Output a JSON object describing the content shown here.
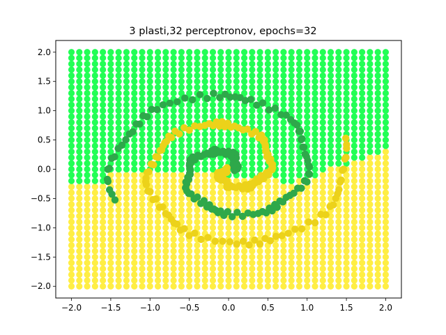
{
  "chart_data": {
    "type": "scatter",
    "title": "3 plasti,32 perceptronov, epochs=32",
    "xlabel": "",
    "ylabel": "",
    "xlim": [
      -2.2,
      2.2
    ],
    "ylim": [
      -2.2,
      2.2
    ],
    "xticks": [
      "−2.0",
      "−1.5",
      "−1.0",
      "−0.5",
      "0.0",
      "0.5",
      "1.0",
      "1.5",
      "2.0"
    ],
    "yticks": [
      "−2.0",
      "−1.5",
      "−1.0",
      "−0.5",
      "0.0",
      "0.5",
      "1.0",
      "1.5",
      "2.0"
    ],
    "xtick_values": [
      -2.0,
      -1.5,
      -1.0,
      -0.5,
      0.0,
      0.5,
      1.0,
      1.5,
      2.0
    ],
    "ytick_values": [
      -2.0,
      -1.5,
      -1.0,
      -0.5,
      0.0,
      0.5,
      1.0,
      1.5,
      2.0
    ],
    "grid": false,
    "background_grid": {
      "x_range": [
        -2.0,
        2.0
      ],
      "y_range": [
        -2.0,
        2.0
      ],
      "step": 0.1,
      "class_a_color": "#22ff55",
      "class_b_color": "#ffee44",
      "boundary_points": [
        {
          "x": -2.0,
          "y": -0.24
        },
        {
          "x": -1.6,
          "y": -0.2
        },
        {
          "x": -1.5,
          "y": -0.05
        },
        {
          "x": -1.2,
          "y": -0.05
        },
        {
          "x": -1.0,
          "y": -0.03
        },
        {
          "x": -0.5,
          "y": -0.05
        },
        {
          "x": 0.0,
          "y": -0.1
        },
        {
          "x": 0.5,
          "y": -0.15
        },
        {
          "x": 0.8,
          "y": -0.25
        },
        {
          "x": 1.0,
          "y": -0.15
        },
        {
          "x": 1.2,
          "y": -0.05
        },
        {
          "x": 1.5,
          "y": 0.1
        },
        {
          "x": 1.8,
          "y": 0.25
        },
        {
          "x": 2.0,
          "y": 0.32
        }
      ]
    },
    "series": [
      {
        "class": "A",
        "color": "#2ea84a",
        "spiral": {
          "turns_start_deg": 10,
          "turns_end_deg": 560,
          "r_start": 0.05,
          "r_end": 1.55,
          "phase_deg": 0
        }
      },
      {
        "class": "B",
        "color": "#ecd21a",
        "spiral": {
          "turns_start_deg": 10,
          "turns_end_deg": 560,
          "r_start": 0.05,
          "r_end": 1.55,
          "phase_deg": 180
        }
      }
    ]
  }
}
